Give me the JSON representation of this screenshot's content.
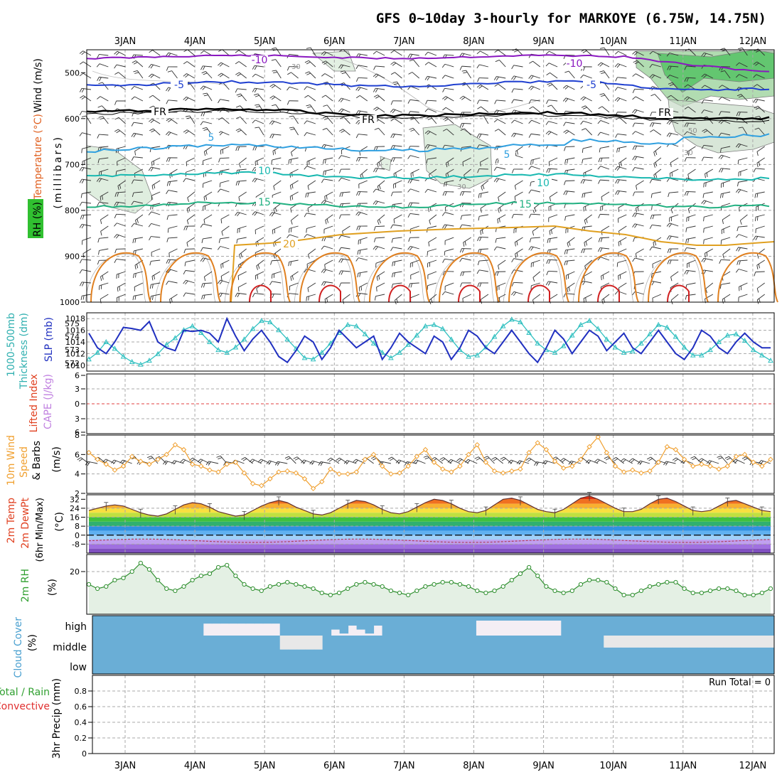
{
  "title": "GFS 0~10day 3-hourly for MARKOYE (6.75W, 14.75N)",
  "date_labels": [
    "3JAN",
    "4JAN",
    "5JAN",
    "6JAN",
    "7JAN",
    "8JAN",
    "9JAN",
    "10JAN",
    "11JAN",
    "12JAN"
  ],
  "colors": {
    "panel_border": "#000000",
    "grid": "#a0a0a0",
    "purple": "#8a18c0",
    "blue": "#2040d0",
    "cyan": "#30a0e0",
    "teal": "#18b8b0",
    "green": "#20b080",
    "orange": "#e0a020",
    "dark_orange": "#e07020",
    "red": "#d02020",
    "slp": "#2030c0",
    "thick": "#30c0c0",
    "wind10": "#f0a030",
    "rh": "#30a030",
    "cloud": "#6aaed6",
    "cloud_empty": "#f4eef4"
  },
  "panels": {
    "upper": {
      "label_wind": "Wind (m/s)",
      "label_temp": "Temperature (°C)",
      "label_rh": "RH (%)",
      "label_mb": "(millibars)",
      "yticks": [
        "500",
        "600",
        "700",
        "800",
        "900",
        "1000"
      ]
    },
    "slp": {
      "label_thick": "1000-500mb",
      "label_thick2": "Thickness (dm)",
      "label_slp": "SLP (mb)",
      "left_ticks": [
        "575",
        "574",
        "573",
        "572"
      ],
      "right_ticks": [
        "1018",
        "1016",
        "1014",
        "1012",
        "1010"
      ]
    },
    "cape": {
      "label_li": "Lifted Index",
      "label_cape": "CAPE (J/kg)",
      "yticks": [
        "6",
        "3",
        "0",
        "3",
        "6"
      ]
    },
    "wind10": {
      "label_a": "10m Wind",
      "label_b": "Speed",
      "label_c": "& Barbs",
      "label_unit": "(m/s)",
      "yticks": [
        "8",
        "6",
        "4",
        "2"
      ]
    },
    "temp2m": {
      "label_a": "2m Temp",
      "label_b": "2m DewPt",
      "label_c": "(6hr Min/Max)",
      "label_unit": "(°C)",
      "yticks": [
        "32",
        "24",
        "16",
        "8",
        "0",
        "-8"
      ]
    },
    "rh2m": {
      "label_a": "2m RH",
      "label_unit": "(%)",
      "yticks": [
        "20"
      ]
    },
    "cloud": {
      "label_a": "Cloud Cover",
      "label_unit": "(%)",
      "levels": [
        "high",
        "middle",
        "low"
      ]
    },
    "precip": {
      "label_a": "Total / Rain",
      "label_b": "Convective",
      "label_c": "3hr Precip (mm)",
      "yticks": [
        "0.8",
        "0.6",
        "0.4",
        "0.2",
        "0"
      ],
      "run_total": "Run Total = 0"
    }
  },
  "contour_labels": {
    "minus10": "-10",
    "minus5": "-5",
    "fr": "FR",
    "plus5": "5",
    "plus10": "10",
    "plus15": "15",
    "plus20": "20",
    "rh30": "30",
    "rh50": "50"
  },
  "chart_data": [
    {
      "type": "line",
      "name": "sea level pressure",
      "unit": "mb",
      "ylim": [
        1009,
        1019
      ],
      "values": [
        1015.5,
        1013,
        1012,
        1014,
        1016.5,
        1016.3,
        1016,
        1017.5,
        1014,
        1013,
        1012.5,
        1016,
        1015.8,
        1016,
        1015.5,
        1014,
        1018,
        1015,
        1012.5,
        1014.5,
        1016,
        1014,
        1011.5,
        1010.5,
        1012.5,
        1015,
        1014,
        1011,
        1013,
        1016,
        1014.5,
        1013,
        1014,
        1015,
        1011,
        1013,
        1015.5,
        1014,
        1013,
        1012,
        1015,
        1014,
        1011,
        1013,
        1016,
        1015,
        1013,
        1012,
        1014,
        1016,
        1014,
        1012,
        1010.5,
        1013,
        1016,
        1014.5,
        1012,
        1014,
        1016,
        1015,
        1012.5,
        1014,
        1015.5,
        1013,
        1012,
        1014,
        1016,
        1014,
        1012,
        1011,
        1013,
        1016,
        1015,
        1013,
        1012,
        1014,
        1015.5,
        1014,
        1013,
        1013
      ],
      "ticks": [
        1010,
        1012,
        1014,
        1016,
        1018
      ]
    },
    {
      "type": "line",
      "name": "1000-500mb thickness",
      "unit": "dm",
      "ylim": [
        571.4,
        575.8
      ],
      "values": [
        572.3,
        572.8,
        573.6,
        573.1,
        572.5,
        572.1,
        571.9,
        572.2,
        572.7,
        573.4,
        573.9,
        574.5,
        574.8,
        574.3,
        573.6,
        573,
        572.8,
        573.2,
        573.8,
        574.6,
        575.2,
        575.1,
        574.5,
        573.8,
        573.1,
        572.4,
        572.3,
        572.8,
        573.5,
        574.3,
        574.9,
        574.8,
        574.2,
        573.5,
        572.8,
        572.4,
        572.8,
        573.4,
        574.1,
        574.8,
        574.9,
        574.6,
        573.8,
        573,
        572.5,
        572.6,
        573.2,
        574,
        574.8,
        575.3,
        575.1,
        574.3,
        573.5,
        573,
        572.8,
        573.3,
        574.1,
        574.9,
        575.2,
        574.6,
        573.8,
        573.2,
        572.8,
        572.9,
        573.5,
        574.2,
        574.9,
        574.7,
        574,
        573.2,
        572.6,
        572.6,
        573,
        573.6,
        574.1,
        574.2,
        573.7,
        573,
        572.6,
        572.2
      ],
      "ticks": [
        572,
        573,
        574,
        575
      ]
    },
    {
      "type": "line",
      "name": "10m wind speed",
      "unit": "m/s",
      "ylim": [
        2,
        8
      ],
      "values": [
        6.2,
        5.5,
        5,
        4.4,
        4.8,
        5.8,
        5.3,
        5,
        5.5,
        6,
        7,
        6.5,
        5,
        4.8,
        4.4,
        4.2,
        5,
        5.2,
        4.1,
        3,
        2.8,
        3.5,
        4.2,
        4.3,
        4.1,
        3.5,
        2.5,
        3.2,
        4.5,
        4,
        4,
        4.2,
        5.5,
        6,
        4.8,
        4,
        4.1,
        4.8,
        5.8,
        6.5,
        5.2,
        4.5,
        4.2,
        4.8,
        6,
        7,
        5.2,
        4.3,
        4.1,
        4.3,
        4.5,
        6.2,
        7.2,
        6.5,
        5.3,
        4.6,
        4.8,
        5.5,
        6.8,
        7.8,
        6.2,
        4.8,
        4.2,
        4.4,
        4.1,
        4.3,
        5.2,
        6.8,
        6.5,
        5.5,
        4.8,
        5,
        4.8,
        4.5,
        4.8,
        5.8,
        6,
        5.2,
        4.8,
        5.5
      ]
    },
    {
      "type": "area",
      "name": "2m temperature",
      "unit": "°C",
      "ylim": [
        -16,
        36
      ],
      "values": [
        22,
        24,
        26,
        27,
        26,
        23,
        20,
        18,
        17,
        19,
        23,
        27,
        29,
        28,
        25,
        21,
        19,
        17,
        18,
        22,
        26,
        29,
        31,
        29,
        25,
        22,
        19,
        18,
        20,
        24,
        28,
        31,
        30,
        27,
        23,
        20,
        19,
        21,
        25,
        29,
        32,
        31,
        28,
        24,
        21,
        20,
        22,
        27,
        32,
        33,
        31,
        27,
        23,
        21,
        20,
        23,
        28,
        33,
        35,
        32,
        28,
        24,
        21,
        21,
        23,
        28,
        32,
        33,
        30,
        26,
        22,
        21,
        22,
        26,
        30,
        31,
        28,
        25,
        22,
        21
      ]
    },
    {
      "type": "area",
      "name": "2m relative humidity",
      "unit": "%",
      "ylim": [
        0,
        28
      ],
      "values": [
        14,
        12,
        13,
        16,
        17,
        20,
        24,
        21,
        16,
        12,
        11,
        13,
        16,
        18,
        19,
        22,
        23,
        18,
        14,
        12,
        11,
        13,
        14,
        15,
        14,
        13,
        12,
        10,
        9,
        10,
        12,
        14,
        15,
        14,
        13,
        11,
        10,
        9,
        11,
        13,
        14,
        15,
        15,
        14,
        13,
        11,
        10,
        11,
        13,
        16,
        19,
        22,
        18,
        13,
        11,
        10,
        11,
        14,
        16,
        16,
        15,
        12,
        9,
        9,
        11,
        13,
        14,
        15,
        15,
        12,
        10,
        10,
        11,
        12,
        12,
        11,
        9,
        9,
        10,
        12
      ]
    },
    {
      "type": "bar",
      "name": "3hr precipitation",
      "unit": "mm",
      "ylim": [
        0,
        1
      ],
      "values": [
        0
      ]
    }
  ]
}
